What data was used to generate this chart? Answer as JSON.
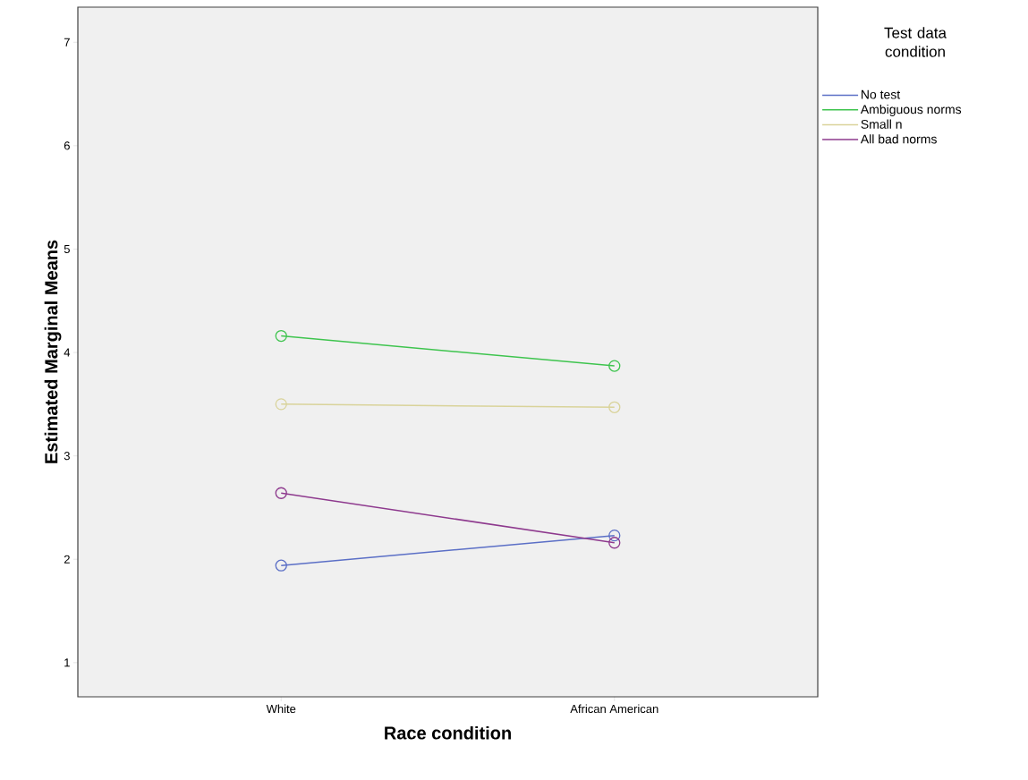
{
  "chart_data": {
    "type": "line",
    "xlabel": "Race condition",
    "ylabel": "Estimated Marginal Means",
    "legend_title": "Test data condition",
    "categories": [
      "White",
      "African American"
    ],
    "series": [
      {
        "name": "No test",
        "color": "#5b6fc6",
        "values": [
          1.94,
          2.23
        ]
      },
      {
        "name": "Ambiguous norms",
        "color": "#3ec44e",
        "values": [
          4.16,
          3.87
        ]
      },
      {
        "name": "Small n",
        "color": "#d9d39a",
        "values": [
          3.5,
          3.47
        ]
      },
      {
        "name": "All bad norms",
        "color": "#8e3a8e",
        "values": [
          2.64,
          2.16
        ]
      }
    ],
    "ylim": [
      0.67,
      7.34
    ],
    "yticks": [
      1,
      2,
      3,
      4,
      5,
      6,
      7
    ],
    "legend": "top right",
    "marker": "circle",
    "line_style": "solid",
    "grid": false
  }
}
